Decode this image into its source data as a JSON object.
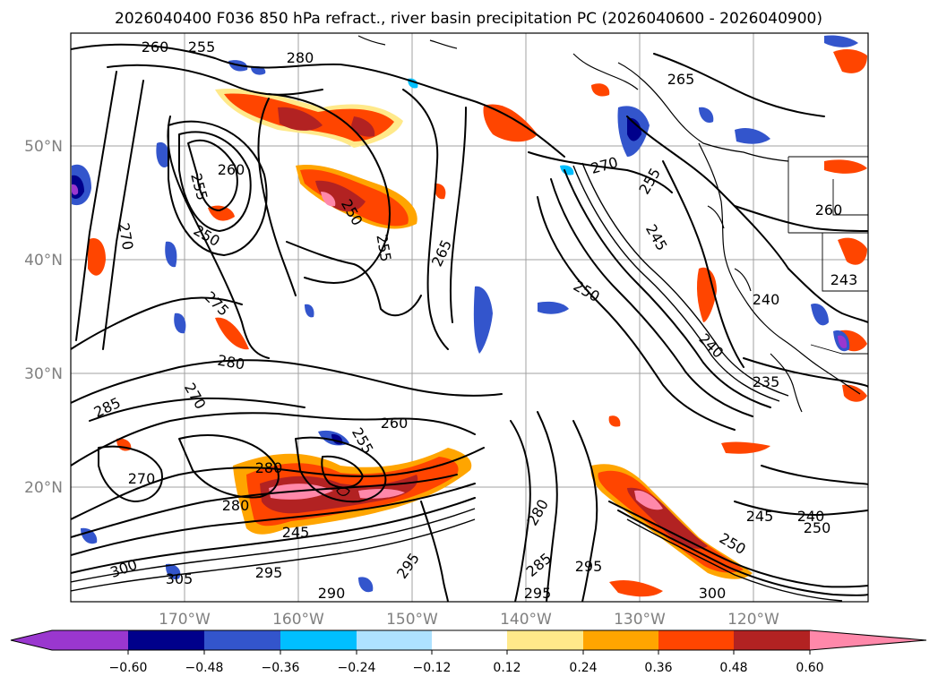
{
  "title": "2026040400 F036 850 hPa refract., river basin precipitation PC (2026040600 - 2026040900)",
  "map": {
    "lat_labels": [
      "50°N",
      "40°N",
      "30°N",
      "20°N"
    ],
    "lon_labels": [
      "170°W",
      "160°W",
      "150°W",
      "140°W",
      "130°W",
      "120°W"
    ],
    "contour_labels": [
      {
        "text": "260"
      },
      {
        "text": "255"
      },
      {
        "text": "280"
      },
      {
        "text": "265"
      },
      {
        "text": "260"
      },
      {
        "text": "255"
      },
      {
        "text": "250"
      },
      {
        "text": "270"
      },
      {
        "text": "250"
      },
      {
        "text": "255"
      },
      {
        "text": "265"
      },
      {
        "text": "270"
      },
      {
        "text": "255"
      },
      {
        "text": "245"
      },
      {
        "text": "250"
      },
      {
        "text": "240"
      },
      {
        "text": "240"
      },
      {
        "text": "235"
      },
      {
        "text": "275"
      },
      {
        "text": "280"
      },
      {
        "text": "285"
      },
      {
        "text": "270"
      },
      {
        "text": "260"
      },
      {
        "text": "255"
      },
      {
        "text": "280"
      },
      {
        "text": "280"
      },
      {
        "text": "245"
      },
      {
        "text": "305"
      },
      {
        "text": "300"
      },
      {
        "text": "295"
      },
      {
        "text": "290"
      },
      {
        "text": "295"
      },
      {
        "text": "280"
      },
      {
        "text": "285"
      },
      {
        "text": "295"
      },
      {
        "text": "295"
      },
      {
        "text": "245"
      },
      {
        "text": "240"
      },
      {
        "text": "250"
      },
      {
        "text": "250"
      },
      {
        "text": "300"
      },
      {
        "text": "260"
      },
      {
        "text": "243"
      },
      {
        "text": "270"
      }
    ]
  },
  "colorbar": {
    "colors": [
      "#9a37cf",
      "#00008b",
      "#3355cc",
      "#00bfff",
      "#aee2ff",
      "#ffffff",
      "#ffe98a",
      "#ffa500",
      "#ff4500",
      "#b22222",
      "#ff88aa"
    ],
    "ticks": [
      "−0.60",
      "−0.48",
      "−0.36",
      "−0.24",
      "−0.12",
      "0.12",
      "0.24",
      "0.36",
      "0.48",
      "0.60"
    ]
  }
}
